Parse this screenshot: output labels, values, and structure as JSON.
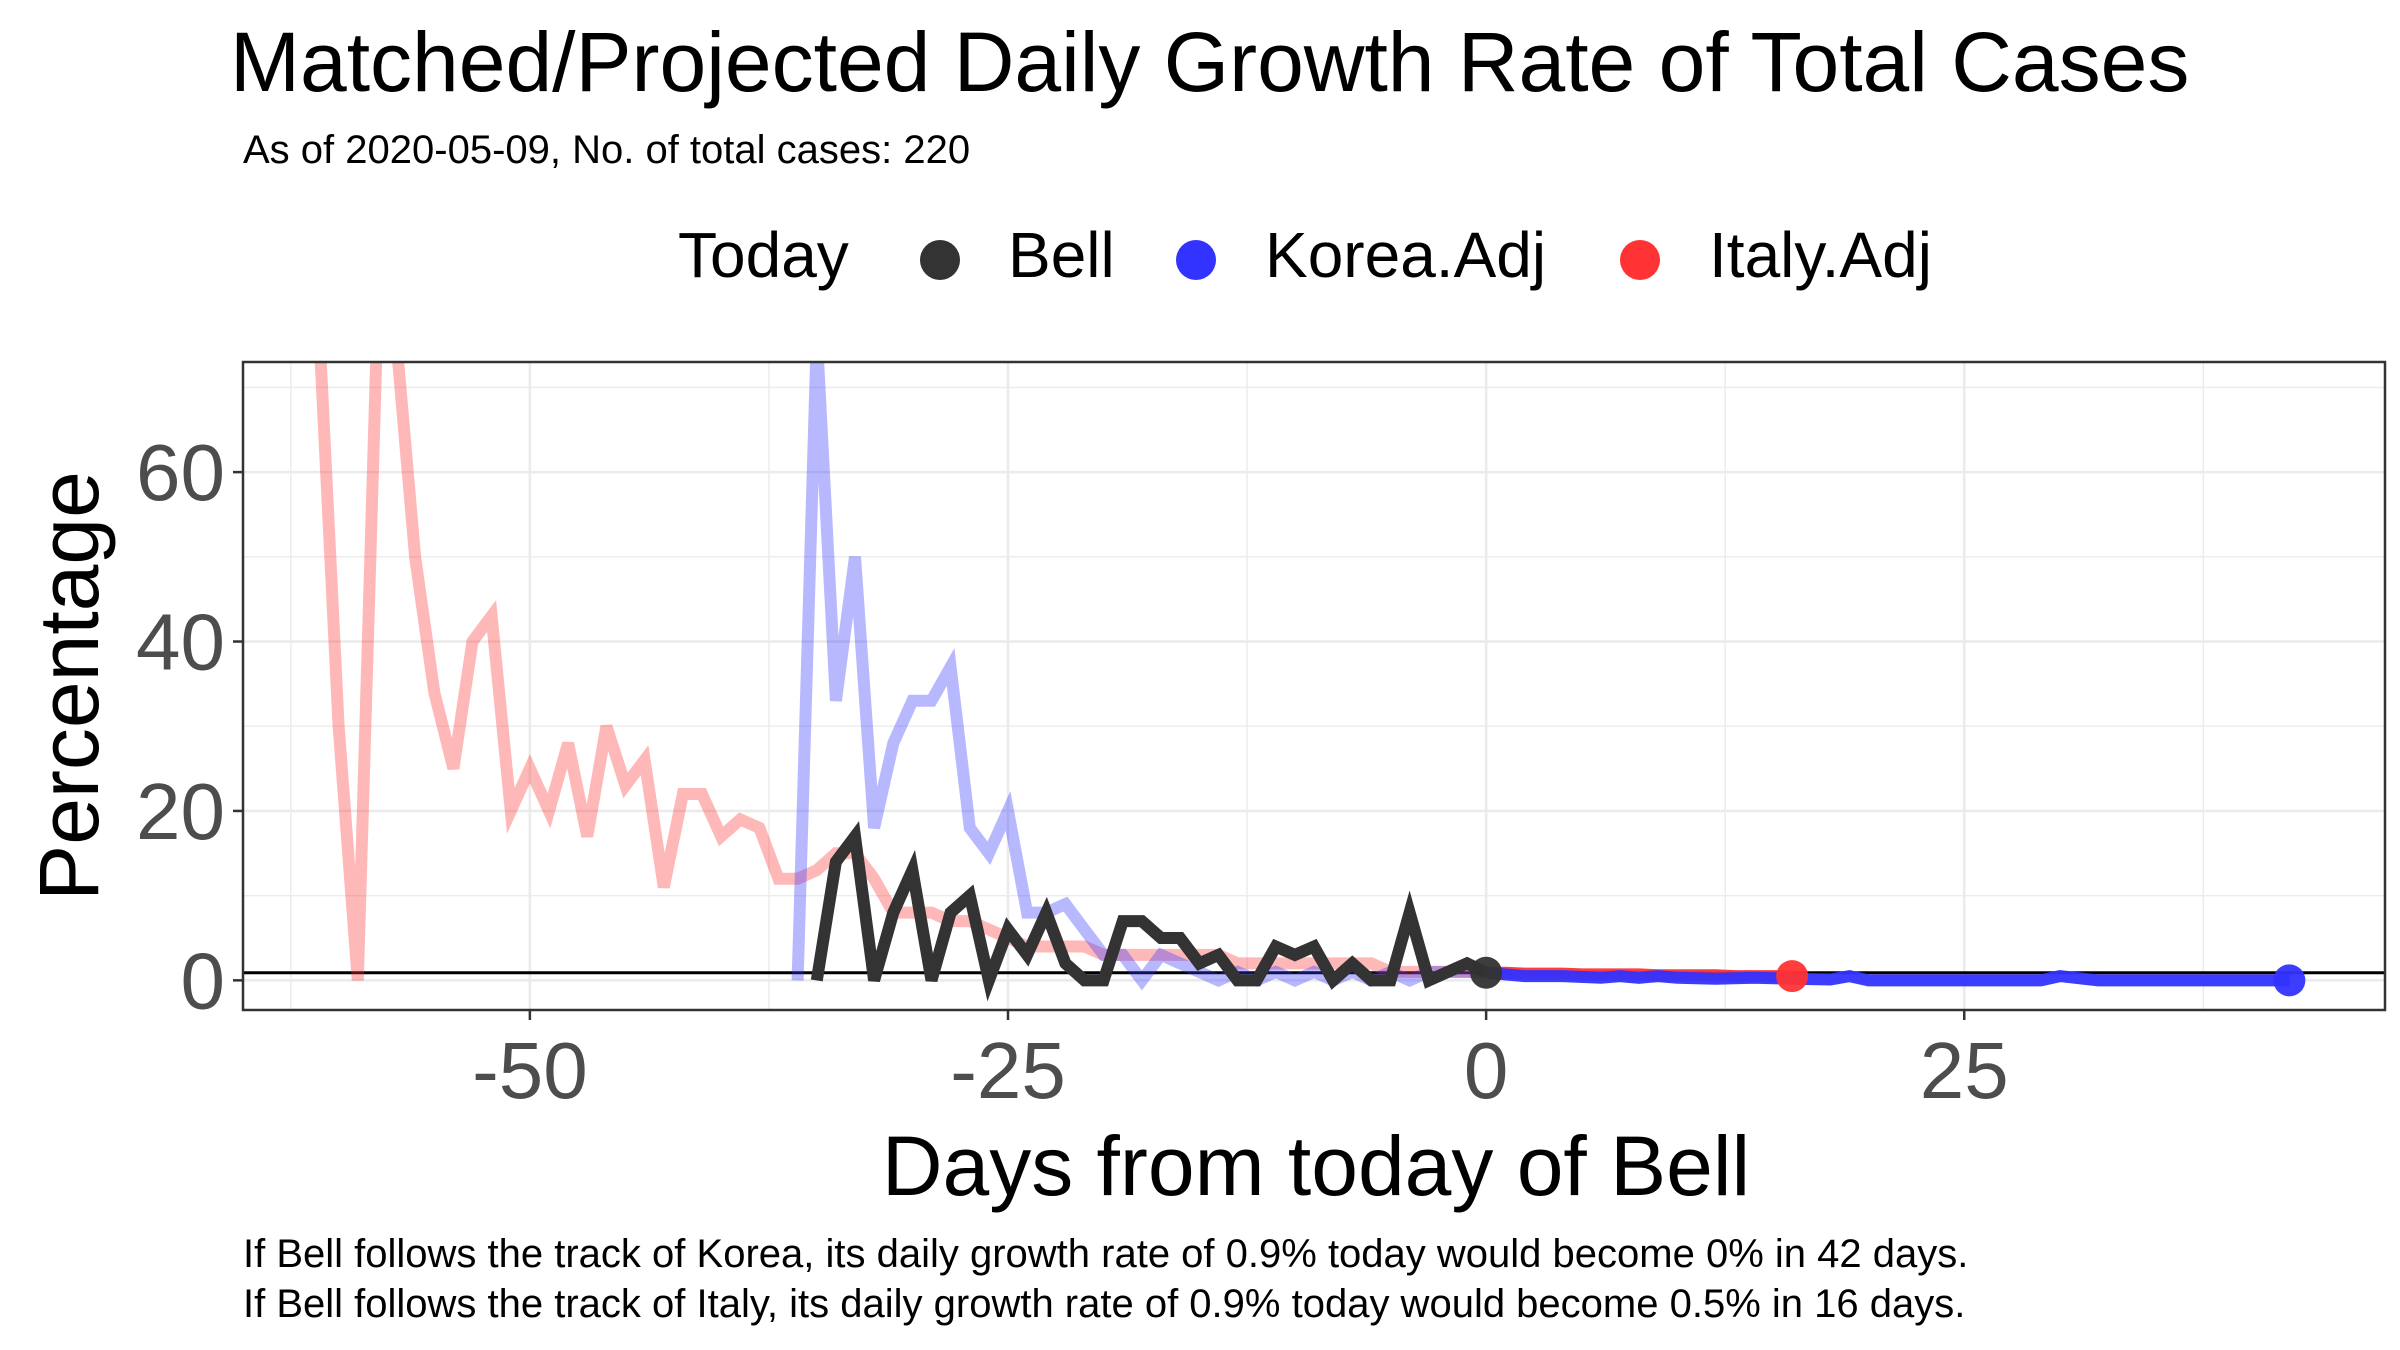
{
  "chart_data": {
    "type": "line",
    "title": "Matched/Projected Daily Growth Rate of Total Cases",
    "subtitle": "As of 2020-05-09, No. of total cases: 220",
    "xlabel": "Days from today of Bell",
    "ylabel": "Percentage",
    "xlim": [
      -65,
      47
    ],
    "ylim": [
      -3.5,
      73
    ],
    "x_ticks": [
      -50,
      -25,
      0,
      25
    ],
    "x_tick_labels": [
      "-50",
      "-25",
      "0",
      "25"
    ],
    "y_ticks": [
      0,
      20,
      40,
      60
    ],
    "y_tick_labels": [
      "0",
      "20",
      "40",
      "60"
    ],
    "grid": true,
    "legend": {
      "title": "Today",
      "position": "top",
      "entries": [
        {
          "label": "Bell",
          "color": "#333333"
        },
        {
          "label": "Korea.Adj",
          "color": "#3333ff"
        },
        {
          "label": "Italy.Adj",
          "color": "#ff3333"
        }
      ]
    },
    "hline": 0.9,
    "series": [
      {
        "name": "Italy.Adj",
        "color": "#ff3333",
        "x": [
          -61,
          -60,
          -59,
          -58,
          -57,
          -56,
          -55,
          -54,
          -53,
          -52,
          -51,
          -50,
          -49,
          -48,
          -47,
          -46,
          -45,
          -44,
          -43,
          -42,
          -41,
          -40,
          -39,
          -38,
          -37,
          -36,
          -35,
          -34,
          -33,
          -32,
          -31,
          -30,
          -29,
          -28,
          -27,
          -26,
          -25,
          -24,
          -23,
          -22,
          -21,
          -20,
          -19,
          -18,
          -17,
          -16,
          -15,
          -14,
          -13,
          -12,
          -11,
          -10,
          -9,
          -8,
          -7,
          -6,
          -5,
          -4,
          -3,
          -2,
          -1,
          0
        ],
        "y": [
          76,
          30,
          0,
          76,
          76,
          50,
          34,
          25,
          40,
          43,
          20,
          25,
          20,
          28,
          17,
          30,
          23,
          26,
          11,
          22,
          22,
          17,
          19,
          18,
          12,
          12,
          13,
          15,
          15,
          12,
          8,
          8,
          8,
          7,
          7,
          6,
          5,
          4,
          4,
          4,
          4,
          3,
          3,
          3,
          3,
          3,
          3,
          3,
          2,
          2,
          2,
          2,
          2,
          2,
          2,
          2,
          1,
          1,
          1,
          1,
          1,
          0.9
        ],
        "projected_x": [
          0,
          1,
          2,
          3,
          4,
          5,
          6,
          7,
          8,
          9,
          10,
          11,
          12,
          13,
          14,
          15,
          16
        ],
        "projected_y": [
          0.9,
          0.9,
          0.8,
          0.8,
          0.8,
          0.7,
          0.7,
          0.7,
          0.7,
          0.6,
          0.6,
          0.6,
          0.6,
          0.5,
          0.5,
          0.5,
          0.5
        ],
        "endpoint": {
          "x": 16,
          "y": 0.5
        }
      },
      {
        "name": "Korea.Adj",
        "color": "#3333ff",
        "x": [
          -36,
          -35,
          -34,
          -33,
          -32,
          -31,
          -30,
          -29,
          -28,
          -27,
          -26,
          -25,
          -24,
          -23,
          -22,
          -21,
          -20,
          -19,
          -18,
          -17,
          -16,
          -15,
          -14,
          -13,
          -12,
          -11,
          -10,
          -9,
          -8,
          -7,
          -6,
          -5,
          -4,
          -3,
          -2,
          -1,
          0
        ],
        "y": [
          0,
          76,
          33,
          50,
          18,
          28,
          33,
          33,
          37,
          18,
          15,
          20,
          8,
          8,
          9,
          6,
          3,
          3,
          0,
          3,
          2,
          1,
          0,
          1,
          0,
          1,
          0,
          1,
          0,
          1,
          0,
          1,
          0,
          1,
          1,
          1,
          0.9
        ],
        "projected_x": [
          0,
          2,
          4,
          6,
          7,
          8,
          9,
          10,
          12,
          14,
          16,
          18,
          19,
          20,
          22,
          24,
          26,
          28,
          29,
          30,
          32,
          34,
          36,
          38,
          40,
          42
        ],
        "projected_y": [
          0.9,
          0.5,
          0.5,
          0.3,
          0.5,
          0.3,
          0.5,
          0.3,
          0.2,
          0.3,
          0.2,
          0.1,
          0.5,
          0,
          0,
          0,
          0,
          0,
          0,
          0.5,
          0,
          0,
          0,
          0,
          0,
          0
        ],
        "endpoint": {
          "x": 42,
          "y": 0
        }
      },
      {
        "name": "Bell",
        "color": "#333333",
        "x": [
          -35,
          -34,
          -33,
          -32,
          -31,
          -30,
          -29,
          -28,
          -27,
          -26,
          -25,
          -24,
          -23,
          -22,
          -21,
          -20,
          -19,
          -18,
          -17,
          -16,
          -15,
          -14,
          -13,
          -12,
          -11,
          -10,
          -9,
          -8,
          -7,
          -6,
          -5,
          -4,
          -3,
          -2,
          -1,
          0
        ],
        "y": [
          0,
          14,
          17,
          0,
          8,
          13,
          0,
          8,
          10,
          0,
          6,
          3,
          8,
          2,
          0,
          0,
          7,
          7,
          5,
          5,
          2,
          3,
          0,
          0,
          4,
          3,
          4,
          0,
          2,
          0,
          0,
          8,
          0,
          1,
          2,
          0.9
        ],
        "endpoint": {
          "x": 0,
          "y": 0.9
        }
      }
    ]
  },
  "notes": [
    "If Bell follows the track of Korea, its daily growth rate of 0.9% today would become 0% in 42 days.",
    "If Bell follows the track of Italy, its daily growth rate of 0.9% today would become 0.5% in 16 days."
  ]
}
